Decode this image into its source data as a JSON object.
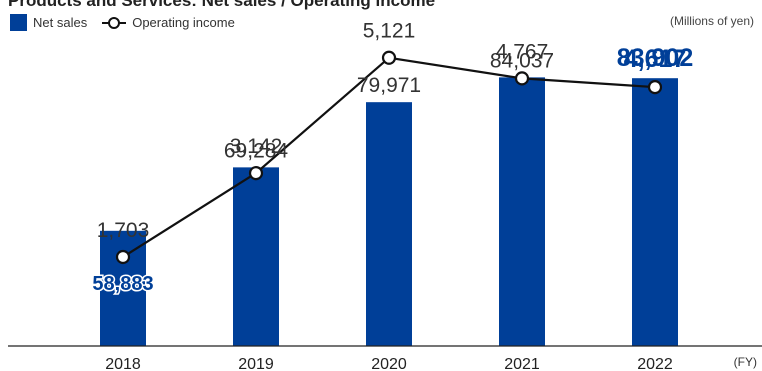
{
  "header": {
    "title": "Products and Services: Net sales / Operating income",
    "unit": "(Millions of yen)"
  },
  "colors": {
    "bar": "#003f98",
    "line": "#111111",
    "highlight": "#003f98"
  },
  "legend": {
    "items": [
      {
        "label": "Net sales",
        "icon": "bar-square-icon"
      },
      {
        "label": "Operating income",
        "icon": "line-circle-icon"
      }
    ]
  },
  "chart_data": {
    "type": "bar",
    "categories": [
      "2018",
      "2019",
      "2020",
      "2021",
      "2022"
    ],
    "xlabel": "(FY)",
    "series": [
      {
        "name": "Net sales",
        "type": "bar",
        "values": [
          58883,
          69284,
          79971,
          84037,
          83902
        ],
        "labels": [
          "58,883",
          "69,284",
          "79,971",
          "84,037",
          "83,902"
        ]
      },
      {
        "name": "Operating income",
        "type": "line",
        "values": [
          1703,
          3142,
          5121,
          4767,
          4617
        ],
        "labels": [
          "1,703",
          "3,142",
          "5,121",
          "4,767",
          "4,617"
        ]
      }
    ],
    "highlight_category": "2022",
    "grid": false
  }
}
